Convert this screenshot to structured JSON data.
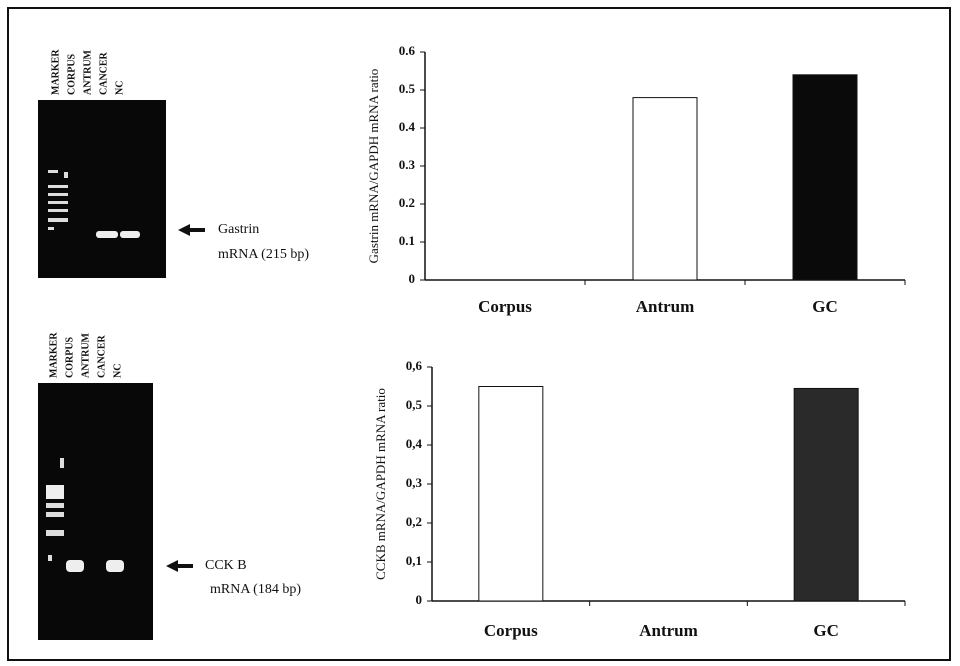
{
  "gels": [
    {
      "lanes": [
        "MARKER",
        "CORPUS",
        "ANTRUM",
        "CANCER",
        "NC"
      ],
      "annotation": [
        "Gastrin",
        "mRNA (215 bp)"
      ]
    },
    {
      "lanes": [
        "MARKER",
        "CORPUS",
        "ANTRUM",
        "CANCER",
        "NC"
      ],
      "annotation": [
        "CCK B",
        "mRNA (184 bp)"
      ]
    }
  ],
  "chart_data": [
    {
      "type": "bar",
      "y_label": "Gastrin mRNA/GAPDH mRNA ratio",
      "categories": [
        "Corpus",
        "Antrum",
        "GC"
      ],
      "values": [
        0,
        0.48,
        0.54
      ],
      "colors": [
        "#ffffff",
        "#ffffff",
        "#0a0a0a"
      ],
      "ylim": [
        0,
        0.6
      ],
      "yticks": [
        0,
        0.1,
        0.2,
        0.3,
        0.4,
        0.5,
        0.6
      ]
    },
    {
      "type": "bar",
      "y_label": "CCKB mRNA/GAPDH mRNA ratio",
      "categories": [
        "Corpus",
        "Antrum",
        "GC"
      ],
      "values": [
        0.55,
        0,
        0.545
      ],
      "colors": [
        "#ffffff",
        "#ffffff",
        "#2a2a2a"
      ],
      "ylim": [
        0,
        0.6
      ],
      "yticks": [
        0,
        {
          "value": 0.1,
          "label": "0,1"
        },
        {
          "value": 0.2,
          "label": "0,2"
        },
        {
          "value": 0.3,
          "label": "0,3"
        },
        {
          "value": 0.4,
          "label": "0,4"
        },
        {
          "value": 0.5,
          "label": "0,5"
        },
        {
          "value": 0.6,
          "label": "0,6"
        }
      ]
    }
  ]
}
